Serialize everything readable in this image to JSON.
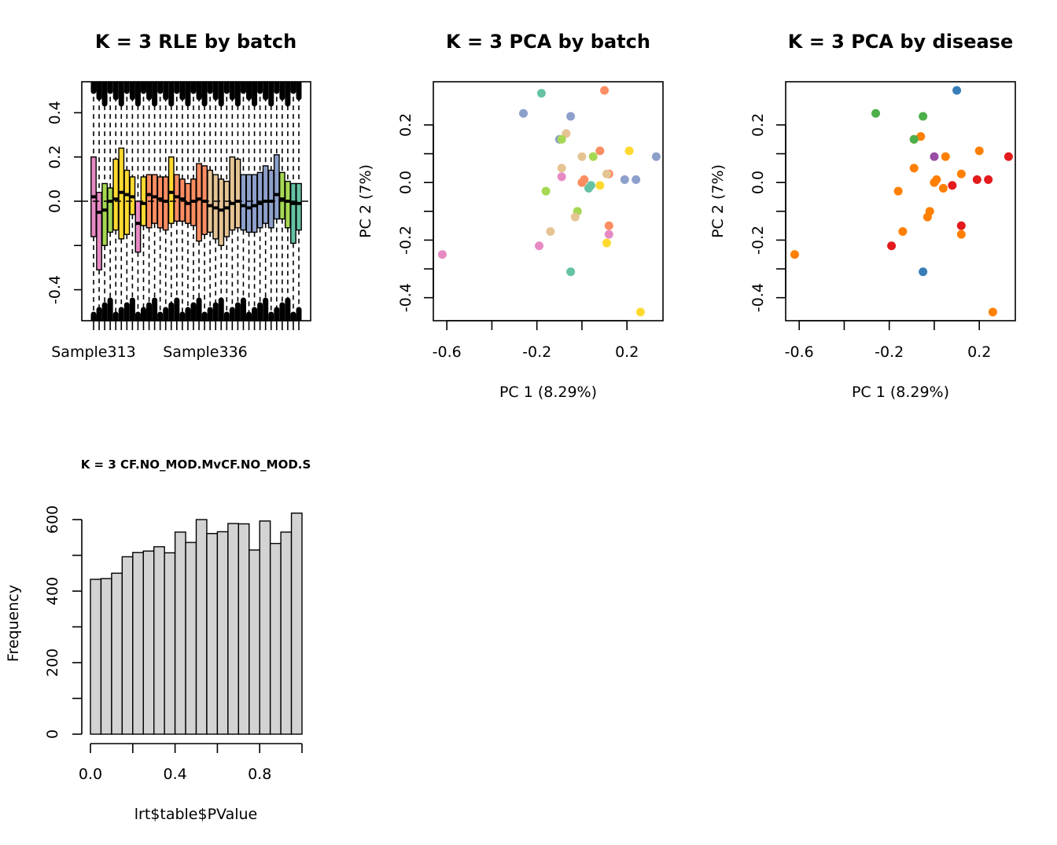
{
  "chart_data": [
    {
      "type": "boxplot",
      "title": "K = 3 RLE by batch",
      "xlabel": "",
      "ylabel": "",
      "ylim": [
        -0.54,
        0.54
      ],
      "yticks": [
        -0.4,
        0.0,
        0.2,
        0.4
      ],
      "ytick_labels": [
        "-0.4",
        "0.0",
        "0.2",
        "0.4"
      ],
      "x_tick_labels": [
        "Sample313",
        "Sample336"
      ],
      "reference_line": 0,
      "n_samples": 38,
      "samples": [
        {
          "color": "#E78AC3",
          "q1": -0.16,
          "med": 0.02,
          "q3": 0.2,
          "wlo": -0.5,
          "whi": 0.55
        },
        {
          "color": "#E78AC3",
          "q1": -0.31,
          "med": -0.05,
          "q3": 0.04,
          "wlo": -0.5,
          "whi": 0.55
        },
        {
          "color": "#A6D854",
          "q1": -0.2,
          "med": -0.04,
          "q3": 0.08,
          "wlo": -0.5,
          "whi": 0.55
        },
        {
          "color": "#A6D854",
          "q1": -0.14,
          "med": 0.0,
          "q3": 0.06,
          "wlo": -0.5,
          "whi": 0.55
        },
        {
          "color": "#FFD92F",
          "q1": -0.13,
          "med": 0.01,
          "q3": 0.19,
          "wlo": -0.5,
          "whi": 0.55
        },
        {
          "color": "#FFD92F",
          "q1": -0.17,
          "med": 0.04,
          "q3": 0.24,
          "wlo": -0.5,
          "whi": 0.55
        },
        {
          "color": "#FFD92F",
          "q1": -0.15,
          "med": 0.03,
          "q3": 0.14,
          "wlo": -0.5,
          "whi": 0.55
        },
        {
          "color": "#FFD92F",
          "q1": -0.06,
          "med": 0.02,
          "q3": 0.11,
          "wlo": -0.5,
          "whi": 0.55
        },
        {
          "color": "#E78AC3",
          "q1": -0.23,
          "med": -0.1,
          "q3": 0.0,
          "wlo": -0.5,
          "whi": 0.55
        },
        {
          "color": "#FFD92F",
          "q1": -0.11,
          "med": -0.01,
          "q3": 0.11,
          "wlo": -0.5,
          "whi": 0.55
        },
        {
          "color": "#FC8D62",
          "q1": -0.12,
          "med": 0.03,
          "q3": 0.12,
          "wlo": -0.5,
          "whi": 0.55
        },
        {
          "color": "#FC8D62",
          "q1": -0.1,
          "med": 0.02,
          "q3": 0.12,
          "wlo": -0.5,
          "whi": 0.55
        },
        {
          "color": "#FC8D62",
          "q1": -0.12,
          "med": 0.01,
          "q3": 0.11,
          "wlo": -0.5,
          "whi": 0.55
        },
        {
          "color": "#FC8D62",
          "q1": -0.13,
          "med": 0.0,
          "q3": 0.11,
          "wlo": -0.5,
          "whi": 0.55
        },
        {
          "color": "#FFD92F",
          "q1": -0.1,
          "med": 0.04,
          "q3": 0.2,
          "wlo": -0.5,
          "whi": 0.55
        },
        {
          "color": "#FC8D62",
          "q1": -0.09,
          "med": 0.02,
          "q3": 0.12,
          "wlo": -0.5,
          "whi": 0.55
        },
        {
          "color": "#FC8D62",
          "q1": -0.09,
          "med": 0.01,
          "q3": 0.1,
          "wlo": -0.5,
          "whi": 0.55
        },
        {
          "color": "#FC8D62",
          "q1": -0.1,
          "med": -0.01,
          "q3": 0.08,
          "wlo": -0.5,
          "whi": 0.55
        },
        {
          "color": "#FC8D62",
          "q1": -0.11,
          "med": 0.0,
          "q3": 0.1,
          "wlo": -0.5,
          "whi": 0.55
        },
        {
          "color": "#FC8D62",
          "q1": -0.18,
          "med": 0.01,
          "q3": 0.17,
          "wlo": -0.5,
          "whi": 0.55
        },
        {
          "color": "#FC8D62",
          "q1": -0.15,
          "med": 0.0,
          "q3": 0.16,
          "wlo": -0.5,
          "whi": 0.55
        },
        {
          "color": "#E5C494",
          "q1": -0.14,
          "med": -0.02,
          "q3": 0.14,
          "wlo": -0.5,
          "whi": 0.55
        },
        {
          "color": "#E5C494",
          "q1": -0.17,
          "med": -0.03,
          "q3": 0.12,
          "wlo": -0.5,
          "whi": 0.55
        },
        {
          "color": "#E5C494",
          "q1": -0.2,
          "med": -0.04,
          "q3": 0.1,
          "wlo": -0.5,
          "whi": 0.55
        },
        {
          "color": "#E5C494",
          "q1": -0.16,
          "med": -0.03,
          "q3": 0.09,
          "wlo": -0.5,
          "whi": 0.55
        },
        {
          "color": "#E5C494",
          "q1": -0.13,
          "med": -0.01,
          "q3": 0.2,
          "wlo": -0.5,
          "whi": 0.55
        },
        {
          "color": "#E5C494",
          "q1": -0.12,
          "med": 0.0,
          "q3": 0.19,
          "wlo": -0.5,
          "whi": 0.55
        },
        {
          "color": "#8DA0CB",
          "q1": -0.13,
          "med": -0.02,
          "q3": 0.12,
          "wlo": -0.5,
          "whi": 0.55
        },
        {
          "color": "#8DA0CB",
          "q1": -0.14,
          "med": -0.03,
          "q3": 0.12,
          "wlo": -0.5,
          "whi": 0.55
        },
        {
          "color": "#8DA0CB",
          "q1": -0.14,
          "med": -0.02,
          "q3": 0.12,
          "wlo": -0.5,
          "whi": 0.55
        },
        {
          "color": "#8DA0CB",
          "q1": -0.12,
          "med": -0.01,
          "q3": 0.13,
          "wlo": -0.5,
          "whi": 0.55
        },
        {
          "color": "#8DA0CB",
          "q1": -0.1,
          "med": 0.0,
          "q3": 0.16,
          "wlo": -0.5,
          "whi": 0.55
        },
        {
          "color": "#8DA0CB",
          "q1": -0.12,
          "med": 0.0,
          "q3": 0.14,
          "wlo": -0.5,
          "whi": 0.55
        },
        {
          "color": "#8DA0CB",
          "q1": -0.08,
          "med": 0.03,
          "q3": 0.21,
          "wlo": -0.5,
          "whi": 0.55
        },
        {
          "color": "#A6D854",
          "q1": -0.08,
          "med": 0.01,
          "q3": 0.13,
          "wlo": -0.5,
          "whi": 0.55
        },
        {
          "color": "#A6D854",
          "q1": -0.12,
          "med": 0.0,
          "q3": 0.09,
          "wlo": -0.5,
          "whi": 0.55
        },
        {
          "color": "#66C2A5",
          "q1": -0.19,
          "med": -0.01,
          "q3": 0.08,
          "wlo": -0.5,
          "whi": 0.55
        },
        {
          "color": "#66C2A5",
          "q1": -0.13,
          "med": -0.01,
          "q3": 0.08,
          "wlo": -0.5,
          "whi": 0.55
        }
      ]
    },
    {
      "type": "scatter",
      "title": "K = 3 PCA by batch",
      "xlabel": "PC 1 (8.29%)",
      "ylabel": "PC 2 (7%)",
      "xlim": [
        -0.66,
        0.36
      ],
      "ylim": [
        -0.48,
        0.35
      ],
      "xticks": [
        -0.6,
        -0.2,
        0.2
      ],
      "xtick_labels": [
        "-0.6",
        "-0.2",
        "0.2"
      ],
      "yticks": [
        -0.4,
        -0.2,
        0.0,
        0.2
      ],
      "ytick_labels": [
        "-0.4",
        "-0.2",
        "0.0",
        "0.2"
      ],
      "points": [
        {
          "x": -0.18,
          "y": 0.31,
          "color": "#66C2A5"
        },
        {
          "x": 0.1,
          "y": 0.32,
          "color": "#FC8D62"
        },
        {
          "x": -0.26,
          "y": 0.24,
          "color": "#8DA0CB"
        },
        {
          "x": -0.05,
          "y": 0.23,
          "color": "#8DA0CB"
        },
        {
          "x": -0.07,
          "y": 0.17,
          "color": "#E5C494"
        },
        {
          "x": -0.1,
          "y": 0.15,
          "color": "#8DA0CB"
        },
        {
          "x": -0.09,
          "y": 0.15,
          "color": "#A6D854"
        },
        {
          "x": 0.08,
          "y": 0.11,
          "color": "#FC8D62"
        },
        {
          "x": 0.21,
          "y": 0.11,
          "color": "#FFD92F"
        },
        {
          "x": 0.33,
          "y": 0.09,
          "color": "#8DA0CB"
        },
        {
          "x": 0.05,
          "y": 0.09,
          "color": "#A6D854"
        },
        {
          "x": 0.0,
          "y": 0.09,
          "color": "#E5C494"
        },
        {
          "x": -0.09,
          "y": 0.05,
          "color": "#E5C494"
        },
        {
          "x": 0.12,
          "y": 0.03,
          "color": "#FC8D62"
        },
        {
          "x": 0.11,
          "y": 0.03,
          "color": "#E5C494"
        },
        {
          "x": -0.09,
          "y": 0.02,
          "color": "#E78AC3"
        },
        {
          "x": 0.19,
          "y": 0.01,
          "color": "#8DA0CB"
        },
        {
          "x": 0.24,
          "y": 0.01,
          "color": "#8DA0CB"
        },
        {
          "x": 0.01,
          "y": 0.01,
          "color": "#FC8D62"
        },
        {
          "x": 0.0,
          "y": 0.0,
          "color": "#FC8D62"
        },
        {
          "x": 0.08,
          "y": -0.01,
          "color": "#FFD92F"
        },
        {
          "x": 0.04,
          "y": -0.01,
          "color": "#66C2A5"
        },
        {
          "x": 0.03,
          "y": -0.02,
          "color": "#66C2A5"
        },
        {
          "x": -0.16,
          "y": -0.03,
          "color": "#A6D854"
        },
        {
          "x": -0.02,
          "y": -0.1,
          "color": "#A6D854"
        },
        {
          "x": -0.03,
          "y": -0.12,
          "color": "#E5C494"
        },
        {
          "x": 0.12,
          "y": -0.15,
          "color": "#FC8D62"
        },
        {
          "x": -0.14,
          "y": -0.17,
          "color": "#E5C494"
        },
        {
          "x": 0.12,
          "y": -0.18,
          "color": "#E78AC3"
        },
        {
          "x": 0.11,
          "y": -0.21,
          "color": "#FFD92F"
        },
        {
          "x": -0.19,
          "y": -0.22,
          "color": "#E78AC3"
        },
        {
          "x": -0.62,
          "y": -0.25,
          "color": "#E78AC3"
        },
        {
          "x": -0.05,
          "y": -0.31,
          "color": "#66C2A5"
        },
        {
          "x": 0.26,
          "y": -0.45,
          "color": "#FFD92F"
        }
      ]
    },
    {
      "type": "scatter",
      "title": "K = 3 PCA by disease",
      "xlabel": "PC 1 (8.29%)",
      "ylabel": "PC 2 (7%)",
      "xlim": [
        -0.66,
        0.36
      ],
      "ylim": [
        -0.48,
        0.35
      ],
      "xticks": [
        -0.6,
        -0.2,
        0.2
      ],
      "xtick_labels": [
        "-0.6",
        "-0.2",
        "0.2"
      ],
      "yticks": [
        -0.4,
        -0.2,
        0.0,
        0.2
      ],
      "ytick_labels": [
        "-0.4",
        "-0.2",
        "0.0",
        "0.2"
      ],
      "points": [
        {
          "x": 0.1,
          "y": 0.32,
          "color": "#377EB8"
        },
        {
          "x": -0.26,
          "y": 0.24,
          "color": "#4DAF4A"
        },
        {
          "x": -0.05,
          "y": 0.23,
          "color": "#4DAF4A"
        },
        {
          "x": -0.06,
          "y": 0.16,
          "color": "#FF7F00"
        },
        {
          "x": -0.09,
          "y": 0.15,
          "color": "#FF7F00"
        },
        {
          "x": -0.09,
          "y": 0.15,
          "color": "#4DAF4A"
        },
        {
          "x": 0.2,
          "y": 0.11,
          "color": "#FF7F00"
        },
        {
          "x": 0.05,
          "y": 0.09,
          "color": "#FF7F00"
        },
        {
          "x": 0.0,
          "y": 0.09,
          "color": "#984EA3"
        },
        {
          "x": 0.33,
          "y": 0.09,
          "color": "#E41A1C"
        },
        {
          "x": -0.09,
          "y": 0.05,
          "color": "#FF7F00"
        },
        {
          "x": 0.12,
          "y": 0.03,
          "color": "#FF7F00"
        },
        {
          "x": 0.19,
          "y": 0.01,
          "color": "#E41A1C"
        },
        {
          "x": 0.24,
          "y": 0.01,
          "color": "#E41A1C"
        },
        {
          "x": 0.01,
          "y": 0.01,
          "color": "#FF7F00"
        },
        {
          "x": 0.0,
          "y": 0.0,
          "color": "#FF7F00"
        },
        {
          "x": 0.08,
          "y": -0.01,
          "color": "#E41A1C"
        },
        {
          "x": 0.04,
          "y": -0.02,
          "color": "#FF7F00"
        },
        {
          "x": -0.16,
          "y": -0.03,
          "color": "#FF7F00"
        },
        {
          "x": -0.02,
          "y": -0.1,
          "color": "#FF7F00"
        },
        {
          "x": -0.03,
          "y": -0.12,
          "color": "#FF7F00"
        },
        {
          "x": 0.12,
          "y": -0.15,
          "color": "#E41A1C"
        },
        {
          "x": -0.14,
          "y": -0.17,
          "color": "#FF7F00"
        },
        {
          "x": 0.12,
          "y": -0.18,
          "color": "#FF7F00"
        },
        {
          "x": -0.19,
          "y": -0.22,
          "color": "#E41A1C"
        },
        {
          "x": -0.62,
          "y": -0.25,
          "color": "#FF7F00"
        },
        {
          "x": -0.05,
          "y": -0.31,
          "color": "#377EB8"
        },
        {
          "x": 0.26,
          "y": -0.45,
          "color": "#FF7F00"
        }
      ]
    },
    {
      "type": "histogram",
      "title": "K = 3 CF.NO_MOD.MvCF.NO_MOD.S",
      "xlabel": "lrt$table$PValue",
      "ylabel": "Frequency",
      "xlim": [
        0,
        1
      ],
      "ylim": [
        0,
        620
      ],
      "xticks": [
        0.0,
        0.2,
        0.4,
        0.6,
        0.8,
        1.0
      ],
      "xtick_labels": [
        "0.0",
        "",
        "0.4",
        "",
        "0.8",
        ""
      ],
      "yticks": [
        0,
        100,
        200,
        300,
        400,
        500,
        600
      ],
      "ytick_labels": [
        "0",
        "",
        "200",
        "",
        "400",
        "",
        "600"
      ],
      "bin_width": 0.05,
      "values": [
        433,
        435,
        450,
        496,
        508,
        512,
        524,
        507,
        565,
        536,
        600,
        561,
        566,
        589,
        588,
        515,
        596,
        533,
        565,
        618
      ],
      "bar_color": "#D3D3D3"
    }
  ]
}
